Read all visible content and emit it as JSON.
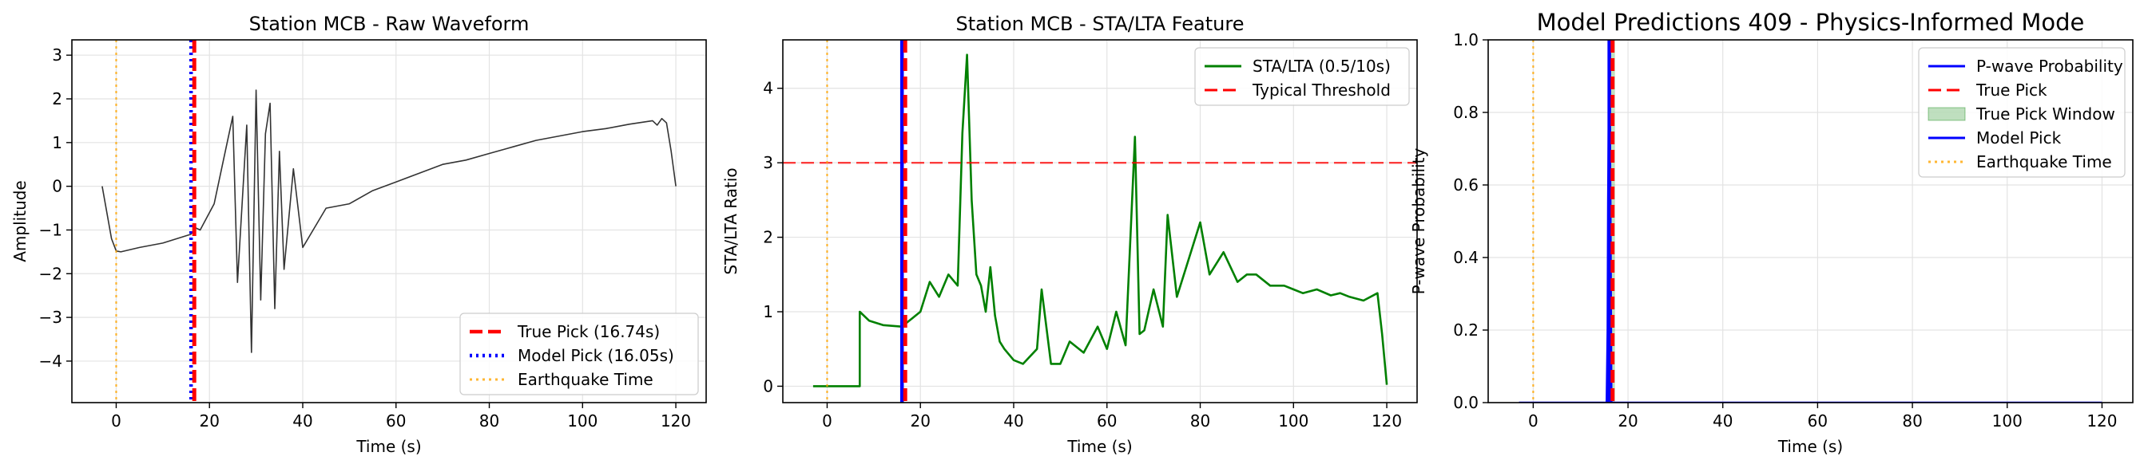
{
  "chart_data": [
    {
      "type": "line",
      "title": "Station MCB - Raw Waveform",
      "xlabel": "Time (s)",
      "ylabel": "Amplitude",
      "xlim": [
        -9.5,
        126.5
      ],
      "ylim": [
        -4.95,
        3.35
      ],
      "xticks": [
        0,
        20,
        40,
        60,
        80,
        100,
        120
      ],
      "yticks": [
        -4,
        -3,
        -2,
        -1,
        0,
        1,
        2,
        3
      ],
      "grid": true,
      "legend_position": "lower-right",
      "legend": [
        {
          "label": "True Pick (16.74s)",
          "color": "#ff0000",
          "style": "dashed"
        },
        {
          "label": "Model Pick (16.05s)",
          "color": "#0000ff",
          "style": "dotted"
        },
        {
          "label": "Earthquake Time",
          "color": "#ffa500",
          "style": "dotted"
        }
      ],
      "series": [
        {
          "color": "#333333",
          "x": [
            -3,
            -1,
            0,
            1,
            5,
            10,
            16,
            17,
            18,
            21,
            23,
            25,
            26,
            28,
            29,
            30,
            31,
            32,
            33,
            34,
            35,
            36,
            38,
            40,
            45,
            50,
            55,
            60,
            65,
            70,
            75,
            80,
            85,
            90,
            95,
            100,
            105,
            110,
            115,
            116,
            117,
            118,
            119,
            120
          ],
          "y": [
            0,
            -1.2,
            -1.48,
            -1.5,
            -1.4,
            -1.3,
            -1.1,
            -0.95,
            -1.0,
            -0.4,
            0.6,
            1.6,
            -2.2,
            1.4,
            -3.8,
            2.2,
            -2.6,
            1.2,
            1.9,
            -2.8,
            0.8,
            -1.9,
            0.4,
            -1.4,
            -0.5,
            -0.4,
            -0.1,
            0.1,
            0.3,
            0.5,
            0.6,
            0.75,
            0.9,
            1.05,
            1.15,
            1.25,
            1.32,
            1.42,
            1.5,
            1.4,
            1.55,
            1.45,
            0.8,
            0
          ]
        }
      ],
      "vlines": [
        {
          "x": 0,
          "color": "#ffa500",
          "style": "dotted"
        },
        {
          "x": 16.05,
          "color": "#0000ff",
          "style": "dotted"
        },
        {
          "x": 16.74,
          "color": "#ff0000",
          "style": "dashed"
        }
      ]
    },
    {
      "type": "line",
      "title": "Station MCB - STA/LTA Feature",
      "xlabel": "Time (s)",
      "ylabel": "STA/LTA Ratio",
      "xlim": [
        -9.5,
        126.5
      ],
      "ylim": [
        -0.22,
        4.65
      ],
      "xticks": [
        0,
        20,
        40,
        60,
        80,
        100,
        120
      ],
      "yticks": [
        0,
        1,
        2,
        3,
        4
      ],
      "grid": true,
      "legend_position": "upper-right",
      "legend": [
        {
          "label": "STA/LTA (0.5/10s)",
          "color": "#008000",
          "style": "solid"
        },
        {
          "label": "Typical Threshold",
          "color": "#ff0000",
          "style": "dashed"
        }
      ],
      "series": [
        {
          "name": "STA/LTA (0.5/10s)",
          "color": "#008000",
          "x": [
            -3,
            0,
            7,
            7,
            9,
            12,
            16,
            18,
            20,
            22,
            24,
            26,
            28,
            29,
            30,
            31,
            32,
            33,
            34,
            35,
            36,
            37,
            38,
            40,
            42,
            45,
            46,
            48,
            50,
            52,
            55,
            58,
            60,
            62,
            64,
            66,
            67,
            68,
            70,
            72,
            73,
            75,
            77,
            80,
            82,
            85,
            88,
            90,
            92,
            95,
            98,
            100,
            102,
            105,
            108,
            110,
            112,
            115,
            118,
            119,
            120
          ],
          "y": [
            0,
            0,
            0,
            1.0,
            0.88,
            0.82,
            0.8,
            0.9,
            1.0,
            1.4,
            1.2,
            1.5,
            1.35,
            3.4,
            4.45,
            2.5,
            1.5,
            1.35,
            1.0,
            1.6,
            0.95,
            0.6,
            0.5,
            0.35,
            0.3,
            0.5,
            1.3,
            0.3,
            0.3,
            0.6,
            0.45,
            0.8,
            0.5,
            1.0,
            0.55,
            3.35,
            0.7,
            0.75,
            1.3,
            0.8,
            2.3,
            1.2,
            1.6,
            2.2,
            1.5,
            1.8,
            1.4,
            1.5,
            1.5,
            1.35,
            1.35,
            1.3,
            1.25,
            1.3,
            1.22,
            1.25,
            1.2,
            1.15,
            1.25,
            0.7,
            0.02
          ]
        }
      ],
      "hlines": [
        {
          "y": 3.0,
          "color": "#ff0000",
          "style": "dashed"
        }
      ],
      "vlines": [
        {
          "x": 0,
          "color": "#ffa500",
          "style": "dotted"
        },
        {
          "x": 16.05,
          "color": "#0000ff",
          "style": "solid"
        },
        {
          "x": 16.74,
          "color": "#ff0000",
          "style": "dashed"
        }
      ]
    },
    {
      "type": "line",
      "title": "Model Predictions 409 - Physics-Informed Mode",
      "xlabel": "Time (s)",
      "ylabel": "P-wave Probability",
      "xlim": [
        -9.5,
        126.5
      ],
      "ylim": [
        0,
        1
      ],
      "xticks": [
        0,
        20,
        40,
        60,
        80,
        100,
        120
      ],
      "yticks": [
        0.0,
        0.2,
        0.4,
        0.6,
        0.8,
        1.0
      ],
      "grid": true,
      "legend_position": "upper-right",
      "legend": [
        {
          "label": "P-wave Probability",
          "color": "#0000ff",
          "style": "solid"
        },
        {
          "label": "True Pick",
          "color": "#ff0000",
          "style": "dashed"
        },
        {
          "label": "True Pick Window",
          "color": "#008000",
          "style": "patch"
        },
        {
          "label": "Model Pick",
          "color": "#0000ff",
          "style": "solid"
        },
        {
          "label": "Earthquake Time",
          "color": "#ffa500",
          "style": "dotted"
        }
      ],
      "series": [
        {
          "name": "P-wave Probability",
          "color": "#0000ff",
          "x": [
            -3,
            15.5,
            15.7,
            15.8,
            16.0,
            16.05,
            16.1,
            16.3,
            16.5,
            120
          ],
          "y": [
            0,
            0,
            0.2,
            0.55,
            0.9,
            1.0,
            0.9,
            0.55,
            0,
            0
          ]
        }
      ],
      "spans": [
        {
          "x0": 16.24,
          "x1": 17.24,
          "color": "#008000",
          "alpha": 0.25
        }
      ],
      "vlines": [
        {
          "x": 0,
          "color": "#ffa500",
          "style": "dotted"
        },
        {
          "x": 16.05,
          "color": "#0000ff",
          "style": "solid"
        },
        {
          "x": 16.74,
          "color": "#ff0000",
          "style": "dashed"
        }
      ]
    }
  ]
}
